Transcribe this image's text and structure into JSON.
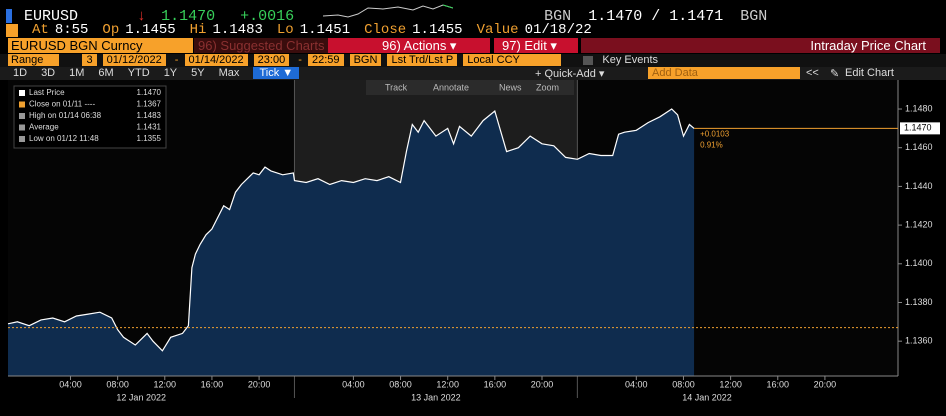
{
  "header": {
    "ticker": "EURUSD",
    "last": "1.1470",
    "change": "+.0016",
    "bid_source": "BGN",
    "bid": "1.1470",
    "separator": "/",
    "ask": "1.1471",
    "ask_source": "BGN"
  },
  "quote_line": [
    {
      "label": "At",
      "value": "8:55"
    },
    {
      "label": "Op",
      "value": "1.1455"
    },
    {
      "label": "Hi",
      "value": "1.1483"
    },
    {
      "label": "Lo",
      "value": "1.1451"
    },
    {
      "label": "Close",
      "value": "1.1455"
    },
    {
      "label": "Value",
      "value": "01/18/22"
    }
  ],
  "toolbar": {
    "security": "EURUSD BGN Curncy",
    "suggested": "96) Suggested Charts",
    "actions": "96) Actions ▾",
    "edit": "97) Edit ▾",
    "title": "Intraday Price Chart"
  },
  "range_bar": {
    "label": "Range",
    "days": "3",
    "start_date": "01/12/2022",
    "dash1": "-",
    "end_date": "01/14/2022",
    "start_time": "23:00",
    "dash2": "-",
    "end_time": "22:59",
    "source": "BGN",
    "field": "Lst Trd/Lst P",
    "currency": "Local CCY",
    "events": "Key Events"
  },
  "periods": [
    "1D",
    "3D",
    "1M",
    "6M",
    "YTD",
    "1Y",
    "5Y",
    "Max"
  ],
  "period_active": "Tick ▼",
  "right_tools": {
    "quick_add": "+ Quick-Add ▾",
    "add_data": "Add Data",
    "collapse": "<<",
    "edit_chart": "Edit Chart"
  },
  "chart_tools": [
    "Track",
    "Annotate",
    "News",
    "Zoom"
  ],
  "chart_data": {
    "type": "area",
    "color": "#ffffff",
    "fill": "#0f2c4e",
    "x": [
      -1.3,
      -0.5,
      0.5,
      1.5,
      2.5,
      3.5,
      4.5,
      5.5,
      6.5,
      7.5,
      8.0,
      8.5,
      9.5,
      10.5,
      11.0,
      11.8,
      12.5,
      13.5,
      14.0,
      14.3,
      14.6,
      15.0,
      15.5,
      16.0,
      16.5,
      17.0,
      17.5,
      18.0,
      18.5,
      19.0,
      19.5,
      20.0,
      20.5,
      21.0,
      22.0,
      22.9,
      23.0,
      24,
      25,
      26,
      27,
      28,
      29,
      30,
      31,
      32,
      32.5,
      33,
      33.5,
      34,
      35,
      36,
      36.5,
      37,
      38,
      39,
      40,
      41,
      42,
      43,
      44,
      45,
      46,
      47,
      48,
      49,
      50,
      50.5,
      51,
      52,
      53,
      54,
      55,
      55.5,
      56,
      56.5,
      56.9
    ],
    "values": [
      1.1369,
      1.137,
      1.1368,
      1.1371,
      1.1372,
      1.137,
      1.1373,
      1.1374,
      1.1375,
      1.1372,
      1.1366,
      1.1362,
      1.1358,
      1.1364,
      1.136,
      1.1355,
      1.1362,
      1.1364,
      1.1368,
      1.1398,
      1.1405,
      1.141,
      1.1415,
      1.1418,
      1.1424,
      1.143,
      1.1428,
      1.1437,
      1.1441,
      1.1444,
      1.1447,
      1.1446,
      1.145,
      1.1448,
      1.1446,
      1.1447,
      1.1443,
      1.1442,
      1.1444,
      1.1441,
      1.1443,
      1.1442,
      1.1444,
      1.1443,
      1.1445,
      1.1442,
      1.1458,
      1.1472,
      1.1468,
      1.1474,
      1.1466,
      1.147,
      1.1462,
      1.1471,
      1.1466,
      1.1474,
      1.1479,
      1.1458,
      1.146,
      1.1466,
      1.1462,
      1.1461,
      1.1455,
      1.1454,
      1.1457,
      1.1456,
      1.1456,
      1.1467,
      1.1468,
      1.1469,
      1.1473,
      1.1476,
      1.148,
      1.1477,
      1.1466,
      1.1472,
      1.147
    ],
    "xlim": [
      -1.3,
      74.2
    ],
    "ylim": [
      1.1342,
      1.1495
    ],
    "yticks": [
      {
        "value": 1.136,
        "label": "1.1360"
      },
      {
        "value": 1.138,
        "label": "1.1380"
      },
      {
        "value": 1.14,
        "label": "1.1400"
      },
      {
        "value": 1.142,
        "label": "1.1420"
      },
      {
        "value": 1.144,
        "label": "1.1440"
      },
      {
        "value": 1.146,
        "label": "1.1460"
      },
      {
        "value": 1.148,
        "label": "1.1480"
      }
    ],
    "xticks": [
      {
        "value": 4,
        "label": "04:00"
      },
      {
        "value": 8,
        "label": "08:00"
      },
      {
        "value": 12,
        "label": "12:00"
      },
      {
        "value": 16,
        "label": "16:00"
      },
      {
        "value": 20,
        "label": "20:00"
      },
      {
        "value": 28,
        "label": "04:00"
      },
      {
        "value": 32,
        "label": "08:00"
      },
      {
        "value": 36,
        "label": "12:00"
      },
      {
        "value": 40,
        "label": "16:00"
      },
      {
        "value": 44,
        "label": "20:00"
      },
      {
        "value": 52,
        "label": "04:00"
      },
      {
        "value": 56,
        "label": "08:00"
      },
      {
        "value": 60,
        "label": "12:00"
      },
      {
        "value": 64,
        "label": "16:00"
      },
      {
        "value": 68,
        "label": "20:00"
      }
    ],
    "xdates": [
      {
        "value": 10,
        "label": "12 Jan 2022"
      },
      {
        "value": 35,
        "label": "13 Jan 2022"
      },
      {
        "value": 58,
        "label": "14 Jan 2022"
      }
    ],
    "session_breaks": [
      23,
      47
    ],
    "legend": [
      {
        "label": "Last Price",
        "value": 1.147,
        "value_label": "1.1470"
      },
      {
        "label": "Close on 01/11 ----",
        "value": 1.1367
      },
      {
        "label": "High on 01/14 06:38",
        "value": 1.1483
      },
      {
        "label": "Average",
        "value": 1.1431
      },
      {
        "label": "Low on 01/12 11:48",
        "value": 1.1355
      }
    ],
    "last_tag": "1.1470",
    "last_change": "+0.0103",
    "last_pct": "0.91%"
  }
}
